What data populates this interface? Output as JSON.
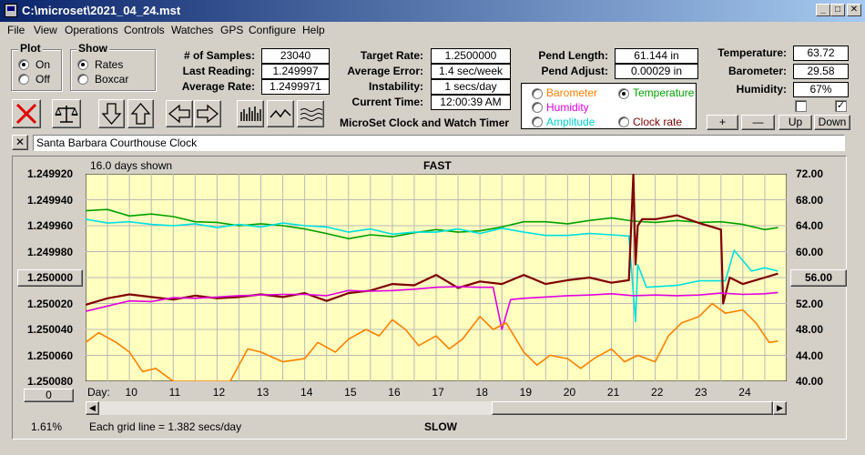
{
  "window": {
    "title": "C:\\microset\\2021_04_24.mst"
  },
  "menu": [
    "File",
    "View",
    "Operations",
    "Controls",
    "Watches",
    "GPS",
    "Configure",
    "Help"
  ],
  "plot_group": {
    "title": "Plot",
    "on_label": "On",
    "off_label": "Off",
    "selected": "On"
  },
  "show_group": {
    "title": "Show",
    "rates_label": "Rates",
    "boxcar_label": "Boxcar",
    "selected": "Rates"
  },
  "stats": {
    "samples_label": "# of Samples:",
    "samples": "23040",
    "last_label": "Last Reading:",
    "last": "1.249997",
    "avg_rate_label": "Average Rate:",
    "avg_rate": "1.2499971",
    "target_label": "Target Rate:",
    "target": "1.2500000",
    "avg_err_label": "Average Error:",
    "avg_err": "1.4 sec/week",
    "instab_label": "Instability:",
    "instab": "1 secs/day",
    "time_label": "Current Time:",
    "time": "12:00:39 AM",
    "pend_len_label": "Pend Length:",
    "pend_len": "61.144 in",
    "pend_adj_label": "Pend Adjust:",
    "pend_adj": "0.00029 in",
    "temp_label": "Temperature:",
    "temp": "63.72",
    "baro_label": "Barometer:",
    "baro": "29.58",
    "hum_label": "Humidity:",
    "hum": "67%"
  },
  "app_title": "MicroSet Clock and Watch Timer",
  "series_select": {
    "barometer": "Barometer",
    "temperature": "Temperature",
    "humidity": "Humidity",
    "amplitude": "Amplitude",
    "clockrate": "Clock rate",
    "selected": "Temperature"
  },
  "buttons": {
    "plus": "+",
    "minus": "—",
    "up": "Up",
    "down": "Down",
    "zero": "0"
  },
  "clock_name": "Santa Barbara Courthouse Clock",
  "colors": {
    "plot_bg": "#ffffc0",
    "rate": "#800000",
    "temperature": "#00a000",
    "amplitude": "#00e0e0",
    "humidity": "#e000e0",
    "barometer": "#ff8000"
  },
  "chart_data": {
    "type": "line",
    "top_label": "FAST",
    "bottom_label": "SLOW",
    "days_shown": "16.0 days shown",
    "grid_note": "Each grid line = 1.382 secs/day",
    "percent": "1.61%",
    "x_label": "Day:",
    "x_ticks": [
      "10",
      "11",
      "12",
      "13",
      "14",
      "15",
      "16",
      "17",
      "18",
      "19",
      "20",
      "21",
      "22",
      "23",
      "24"
    ],
    "x_range": [
      9.0,
      25.0
    ],
    "y_left_ticks": [
      "1.249920",
      "1.249940",
      "1.249960",
      "1.249980",
      "1.250000",
      "1.250020",
      "1.250040",
      "1.250060",
      "1.250080"
    ],
    "y_left_range": [
      1.24992,
      1.25008
    ],
    "y_left_center": "1.250000",
    "y_right_ticks": [
      "72.00",
      "68.00",
      "64.00",
      "60.00",
      "56.00",
      "52.00",
      "48.00",
      "44.00",
      "40.00"
    ],
    "y_right_range": [
      40,
      72
    ],
    "y_right_center": "56.00",
    "grid": true,
    "series": [
      {
        "name": "Temperature",
        "key": "temperature",
        "scale": "right",
        "x": [
          9.0,
          9.5,
          10.0,
          10.5,
          11.0,
          11.5,
          12.0,
          12.5,
          13.0,
          13.5,
          14.0,
          14.5,
          15.0,
          15.5,
          16.0,
          16.5,
          17.0,
          17.5,
          18.0,
          18.5,
          19.0,
          19.5,
          20.0,
          20.5,
          21.0,
          21.5,
          22.0,
          22.5,
          23.0,
          23.5,
          24.0,
          24.5,
          24.8
        ],
        "y": [
          66.3,
          66.5,
          65.5,
          65.8,
          65.4,
          64.6,
          64.5,
          64.0,
          64.3,
          64.0,
          63.5,
          62.8,
          62.0,
          62.6,
          62.3,
          62.9,
          63.4,
          63.0,
          63.2,
          63.8,
          64.6,
          64.6,
          64.3,
          64.8,
          65.2,
          64.7,
          64.5,
          64.8,
          64.5,
          64.6,
          64.2,
          63.4,
          63.7
        ]
      },
      {
        "name": "Amplitude",
        "key": "amplitude",
        "scale": "right",
        "x": [
          9.0,
          9.5,
          10.0,
          10.5,
          11.0,
          11.5,
          12.0,
          12.5,
          13.0,
          13.5,
          14.0,
          14.5,
          15.0,
          15.5,
          16.0,
          16.5,
          17.0,
          17.5,
          18.0,
          18.5,
          19.0,
          19.5,
          20.0,
          20.5,
          21.0,
          21.4,
          21.55,
          21.6,
          21.8,
          22.5,
          23.0,
          23.6,
          23.8,
          24.2,
          24.5,
          24.8
        ],
        "y": [
          65.0,
          64.4,
          64.6,
          64.2,
          64.0,
          64.3,
          63.7,
          64.2,
          63.8,
          64.4,
          64.0,
          63.8,
          63.0,
          63.5,
          62.7,
          63.0,
          63.0,
          63.5,
          62.8,
          63.6,
          63.0,
          62.5,
          62.5,
          62.8,
          62.6,
          62.4,
          49.2,
          58.0,
          54.5,
          54.8,
          55.5,
          55.5,
          60.2,
          57.0,
          57.5,
          57.0
        ]
      },
      {
        "name": "Clock rate",
        "key": "rate",
        "scale": "left",
        "x": [
          9.0,
          9.5,
          10.0,
          10.5,
          11.0,
          11.5,
          12.0,
          12.5,
          13.0,
          13.5,
          14.0,
          14.5,
          15.0,
          15.5,
          16.0,
          16.5,
          17.0,
          17.5,
          18.0,
          18.5,
          19.0,
          19.5,
          20.0,
          20.5,
          21.0,
          21.4,
          21.5,
          21.55,
          21.6,
          21.7,
          22.0,
          22.5,
          23.0,
          23.5,
          23.55,
          23.7,
          24.0,
          24.5,
          24.8
        ],
        "y": [
          1.250021,
          1.250016,
          1.250013,
          1.250015,
          1.250017,
          1.250014,
          1.250016,
          1.250015,
          1.250013,
          1.250015,
          1.250012,
          1.250018,
          1.250012,
          1.25001,
          1.250005,
          1.250006,
          1.249998,
          1.250008,
          1.250003,
          1.250005,
          1.249998,
          1.250005,
          1.250002,
          1.25,
          1.250004,
          1.250002,
          1.24992,
          1.24999,
          1.24996,
          1.249955,
          1.249955,
          1.249952,
          1.249958,
          1.249963,
          1.25002,
          1.25,
          1.250005,
          1.25,
          1.249997
        ]
      },
      {
        "name": "Humidity",
        "key": "humidity",
        "scale": "right",
        "x": [
          9.0,
          9.5,
          10.0,
          10.5,
          11.0,
          11.5,
          12.0,
          12.5,
          13.0,
          13.5,
          14.0,
          14.5,
          15.0,
          15.5,
          16.0,
          16.5,
          17.0,
          17.5,
          18.0,
          18.3,
          18.5,
          18.7,
          19.0,
          19.5,
          20.0,
          20.5,
          21.0,
          21.5,
          22.0,
          22.5,
          23.0,
          23.5,
          24.0,
          24.5,
          24.8
        ],
        "y": [
          50.8,
          51.6,
          52.4,
          52.3,
          52.9,
          52.8,
          53.0,
          53.2,
          53.3,
          53.4,
          53.4,
          53.2,
          54.0,
          53.9,
          54.0,
          54.2,
          54.5,
          54.6,
          54.5,
          54.5,
          48.0,
          52.6,
          52.8,
          53.0,
          53.2,
          53.3,
          53.5,
          53.2,
          53.3,
          53.2,
          53.3,
          53.6,
          53.4,
          53.5,
          53.7
        ]
      },
      {
        "name": "Barometer",
        "key": "barometer",
        "scale": "right",
        "x": [
          9.0,
          9.3,
          9.7,
          10.0,
          10.3,
          10.6,
          11.0,
          11.5,
          12.0,
          12.3,
          12.7,
          13.0,
          13.5,
          14.0,
          14.3,
          14.7,
          15.0,
          15.4,
          15.7,
          16.0,
          16.3,
          16.6,
          17.0,
          17.3,
          17.6,
          18.0,
          18.3,
          18.6,
          19.0,
          19.3,
          19.6,
          20.0,
          20.3,
          20.6,
          21.0,
          21.3,
          21.6,
          22.0,
          22.3,
          22.6,
          23.0,
          23.3,
          23.6,
          24.0,
          24.3,
          24.6,
          24.8
        ],
        "y": [
          46.0,
          47.5,
          46.0,
          44.5,
          41.5,
          42.0,
          40.0,
          40.0,
          40.0,
          40.0,
          45.0,
          44.5,
          43.0,
          43.5,
          46.0,
          44.5,
          46.5,
          48.0,
          47.0,
          49.5,
          48.0,
          45.5,
          47.0,
          45.0,
          46.5,
          50.0,
          48.0,
          49.0,
          44.5,
          42.5,
          44.0,
          43.5,
          42.0,
          43.5,
          45.0,
          43.0,
          44.0,
          43.0,
          47.0,
          49.0,
          50.0,
          52.0,
          50.5,
          51.0,
          49.0,
          46.0,
          46.2
        ]
      }
    ]
  }
}
